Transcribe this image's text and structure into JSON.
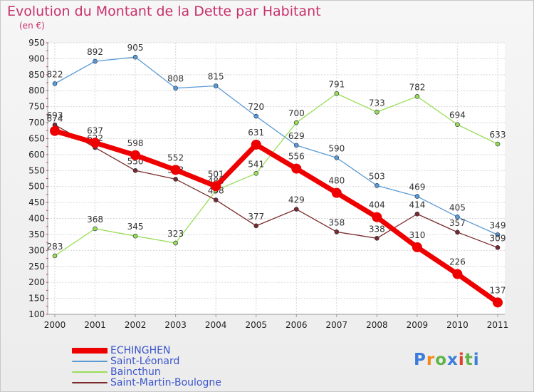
{
  "title": "Evolution du Montant de la Dette par Habitant",
  "subtitle": "(en €)",
  "logo_text": "Proxiti",
  "chart_data": {
    "type": "line",
    "title": "Evolution du Montant de la Dette par Habitant",
    "subtitle": "(en €)",
    "x": [
      "2000",
      "2001",
      "2002",
      "2003",
      "2004",
      "2005",
      "2006",
      "2007",
      "2008",
      "2009",
      "2010",
      "2011"
    ],
    "yticks": [
      100,
      150,
      200,
      250,
      300,
      350,
      400,
      450,
      500,
      550,
      600,
      650,
      700,
      750,
      800,
      850,
      900,
      950
    ],
    "ylim": [
      100,
      950
    ],
    "grid": true,
    "legend_position": "bottom-left",
    "series": [
      {
        "name": "ECHINGHEN",
        "color": "#ee0000",
        "values": [
          674,
          637,
          598,
          552,
          501,
          631,
          556,
          480,
          404,
          310,
          226,
          137
        ]
      },
      {
        "name": "Saint-Léonard",
        "color": "#5b9bd5",
        "values": [
          822,
          892,
          905,
          808,
          815,
          720,
          629,
          590,
          503,
          469,
          405,
          349
        ]
      },
      {
        "name": "Baincthun",
        "color": "#99dd55",
        "values": [
          283,
          368,
          345,
          323,
          488,
          541,
          700,
          791,
          733,
          782,
          694,
          633
        ]
      },
      {
        "name": "Saint-Martin-Boulogne",
        "color": "#7a2a2a",
        "values": [
          693,
          622,
          550,
          523,
          458,
          377,
          429,
          358,
          338,
          414,
          357,
          309
        ]
      }
    ]
  }
}
